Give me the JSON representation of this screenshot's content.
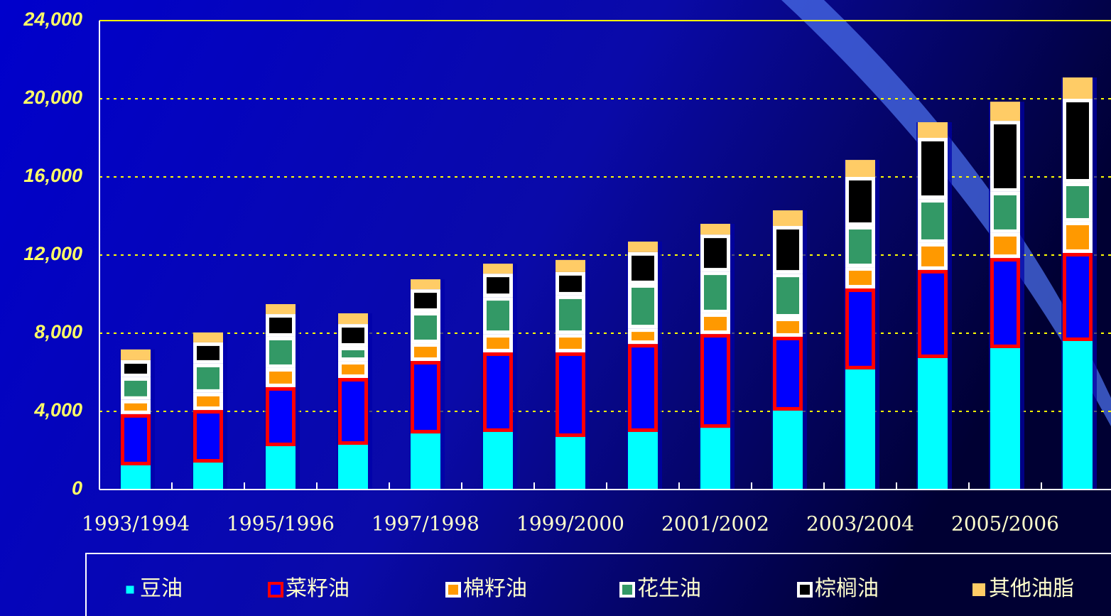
{
  "chart_data": {
    "type": "stacked_bar",
    "categories": [
      "1993/1994",
      null,
      "1995/1996",
      null,
      "1997/1998",
      null,
      "1999/2000",
      null,
      "2001/2002",
      null,
      "2003/2004",
      null,
      "2005/2006",
      null
    ],
    "series": [
      {
        "name": "豆油",
        "color": "#00ffff",
        "values": [
          1240,
          1380,
          2220,
          2290,
          2870,
          2950,
          2690,
          2950,
          3160,
          4040,
          6150,
          6730,
          7240,
          7600
        ]
      },
      {
        "name": "菜籽油",
        "color": "#0000ff",
        "edgecolor": "#ff0000",
        "values": [
          2620,
          2690,
          3020,
          3420,
          3710,
          4070,
          4330,
          4500,
          4800,
          3780,
          4140,
          4510,
          4610,
          4510
        ]
      },
      {
        "name": "棉籽油",
        "color": "#ff9900",
        "edgecolor": "#ffffff",
        "values": [
          730,
          880,
          980,
          870,
          910,
          940,
          940,
          800,
          1060,
          980,
          1090,
          1380,
          1280,
          1600
        ]
      },
      {
        "name": "花生油",
        "color": "#339966",
        "edgecolor": "#ffffff",
        "values": [
          1160,
          1490,
          1600,
          730,
          1600,
          1890,
          1970,
          2260,
          2140,
          2250,
          2110,
          2250,
          2110,
          2000
        ]
      },
      {
        "name": "棕榈油",
        "color": "#000000",
        "edgecolor": "#ffffff",
        "values": [
          870,
          1090,
          1160,
          1160,
          1160,
          1200,
          1200,
          1640,
          1890,
          2440,
          2510,
          3130,
          3630,
          4290
        ]
      },
      {
        "name": "其他油脂",
        "color": "#ffcc66",
        "values": [
          550,
          510,
          510,
          550,
          510,
          510,
          620,
          540,
          550,
          800,
          870,
          800,
          980,
          1090
        ]
      }
    ],
    "ylim": [
      0,
      24000
    ],
    "yticks": [
      0,
      {
        "value": 4000,
        "label": "4,000"
      },
      {
        "value": 8000,
        "label": "8,000"
      },
      {
        "value": 12000,
        "label": "12,000"
      },
      {
        "value": 16000,
        "label": "16,000"
      },
      {
        "value": 20000,
        "label": "20,000"
      },
      {
        "value": 24000,
        "label": "24,000"
      }
    ],
    "grid": true,
    "grid_color": "#ffff00"
  }
}
